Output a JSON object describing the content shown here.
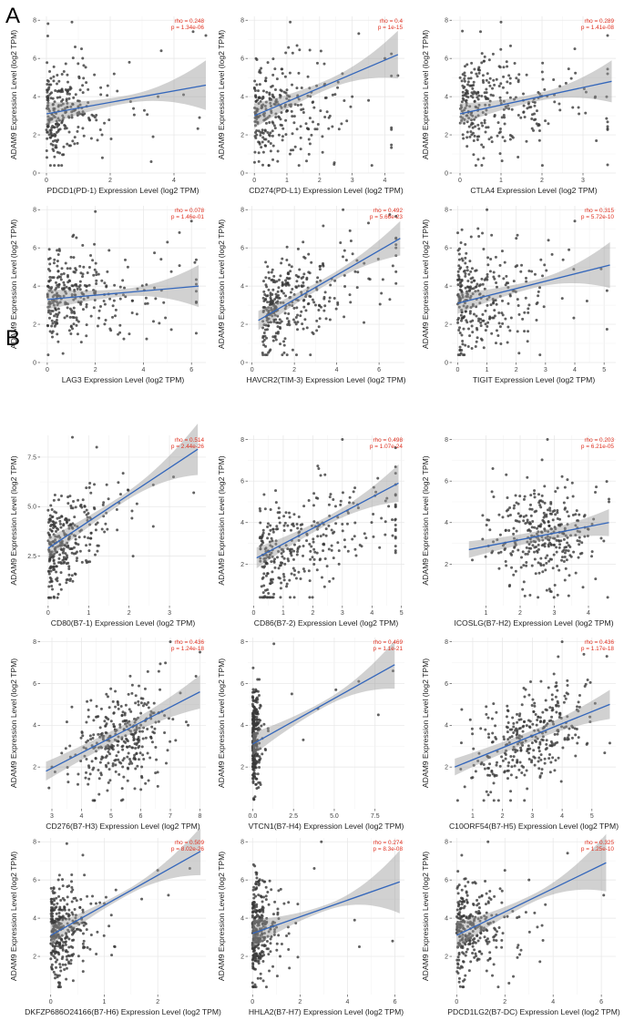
{
  "panels": [
    {
      "label": "A"
    },
    {
      "label": "B"
    }
  ],
  "chart_data": [
    {
      "type": "scatter",
      "xlabel": "PDCD1(PD-1) Expression Level (log2 TPM)",
      "ylabel": "ADAM9 Expression Level (log2 TPM)",
      "rho": "rho = 0.248",
      "pval": "p = 1.34e-06",
      "xlim": [
        -0.2,
        5.0
      ],
      "ylim": [
        0,
        8.2
      ],
      "xticks": [
        0,
        2,
        4
      ],
      "yticks": [
        0,
        2,
        4,
        6,
        8
      ],
      "fit": {
        "x": [
          0,
          5
        ],
        "y": [
          3.1,
          4.6
        ]
      },
      "ci": [
        0.2,
        0.4,
        1.1
      ],
      "cloud": {
        "x0": 0.0,
        "xdecay": 0.7,
        "xmax": 4.9,
        "ymean": 3.2,
        "ysd": 1.3,
        "n": 260,
        "seed": 11
      },
      "points": [
        [
          4.6,
          7.4
        ],
        [
          5.0,
          7.2
        ],
        [
          0.8,
          7.9
        ],
        [
          0.9,
          6.6
        ],
        [
          1.1,
          6.5
        ],
        [
          3.6,
          6.4
        ],
        [
          2.6,
          5.8
        ],
        [
          4.3,
          4.1
        ],
        [
          4.8,
          2.9
        ],
        [
          3.5,
          4.0
        ]
      ]
    },
    {
      "type": "scatter",
      "xlabel": "CD274(PD-L1) Expression Level (log2 TPM)",
      "ylabel": "ADAM9 Expression Level (log2 TPM)",
      "rho": "rho = 0.4",
      "pval": "p = 1e-15",
      "xlim": [
        -0.2,
        4.6
      ],
      "ylim": [
        0,
        8.2
      ],
      "xticks": [
        0,
        1,
        2,
        3,
        4
      ],
      "yticks": [
        0,
        2,
        4,
        6,
        8
      ],
      "fit": {
        "x": [
          0,
          4.4
        ],
        "y": [
          3.0,
          6.2
        ]
      },
      "ci": [
        0.25,
        0.4,
        1.0
      ],
      "cloud": {
        "x0": 0.0,
        "xdecay": 0.9,
        "xmax": 4.2,
        "ymean": 3.3,
        "ysd": 1.3,
        "n": 280,
        "seed": 23
      },
      "points": [
        [
          1.1,
          7.9
        ],
        [
          3.2,
          7.3
        ],
        [
          4.0,
          6.0
        ],
        [
          4.4,
          5.1
        ],
        [
          2.7,
          5.2
        ],
        [
          3.0,
          4.0
        ],
        [
          2.6,
          2.3
        ],
        [
          3.5,
          3.8
        ]
      ]
    },
    {
      "type": "scatter",
      "xlabel": "CTLA4 Expression Level (log2 TPM)",
      "ylabel": "ADAM9 Expression Level (log2 TPM)",
      "rho": "rho = 0.289",
      "pval": "p = 1.41e-08",
      "xlim": [
        -0.2,
        3.8
      ],
      "ylim": [
        0,
        8.2
      ],
      "xticks": [
        0,
        1,
        2,
        3
      ],
      "yticks": [
        0,
        2,
        4,
        6,
        8
      ],
      "fit": {
        "x": [
          0,
          3.7
        ],
        "y": [
          3.1,
          4.8
        ]
      },
      "ci": [
        0.2,
        0.35,
        0.9
      ],
      "cloud": {
        "x0": 0.0,
        "xdecay": 1.0,
        "xmax": 3.6,
        "ymean": 3.5,
        "ysd": 1.3,
        "n": 300,
        "seed": 37
      },
      "points": [
        [
          1.0,
          7.9
        ],
        [
          3.6,
          7.2
        ],
        [
          0.5,
          7.4
        ],
        [
          2.8,
          6.5
        ],
        [
          3.3,
          4.0
        ]
      ]
    },
    {
      "type": "scatter",
      "xlabel": "LAG3 Expression Level (log2 TPM)",
      "ylabel": "ADAM9 Expression Level (log2 TPM)",
      "rho": "rho = 0.078",
      "pval": "p = 1.46e-01",
      "xlim": [
        -0.3,
        6.6
      ],
      "ylim": [
        0,
        8.2
      ],
      "xticks": [
        0,
        2,
        4,
        6
      ],
      "yticks": [
        0,
        2,
        4,
        6,
        8
      ],
      "fit": {
        "x": [
          0,
          6.3
        ],
        "y": [
          3.3,
          4.0
        ]
      },
      "ci": [
        0.2,
        0.35,
        0.9
      ],
      "cloud": {
        "x0": 0.0,
        "xdecay": 1.5,
        "xmax": 6.2,
        "ymean": 3.4,
        "ysd": 1.25,
        "n": 300,
        "seed": 41
      },
      "points": [
        [
          2.0,
          7.9
        ],
        [
          6.0,
          7.4
        ],
        [
          5.0,
          6.3
        ],
        [
          5.5,
          6.8
        ],
        [
          6.2,
          4.1
        ]
      ]
    },
    {
      "type": "scatter",
      "xlabel": "HAVCR2(TIM-3) Expression Level (log2 TPM)",
      "ylabel": "ADAM9 Expression Level (log2 TPM)",
      "rho": "rho = 0.492",
      "pval": "p = 5.66e-23",
      "xlim": [
        -0.2,
        7.2
      ],
      "ylim": [
        0,
        8.2
      ],
      "xticks": [
        0,
        2,
        4,
        6
      ],
      "yticks": [
        0,
        2,
        4,
        6,
        8
      ],
      "fit": {
        "x": [
          0.3,
          7.0
        ],
        "y": [
          2.2,
          6.5
        ]
      },
      "ci": [
        0.2,
        0.3,
        0.7
      ],
      "cloud": {
        "x0": 0.5,
        "xdecay": 1.6,
        "xmax": 6.8,
        "ymean": 3.3,
        "ysd": 1.2,
        "slope": 0.45,
        "n": 330,
        "seed": 53
      },
      "points": [
        [
          4.3,
          8.0
        ],
        [
          5.5,
          7.3
        ],
        [
          6.8,
          6.0
        ],
        [
          0.5,
          0.5
        ],
        [
          1.5,
          1.1
        ]
      ]
    },
    {
      "type": "scatter",
      "xlabel": "TIGIT Expression Level (log2 TPM)",
      "ylabel": "ADAM9 Expression Level (log2 TPM)",
      "rho": "rho = 0.315",
      "pval": "p = 5.72e-10",
      "xlim": [
        -0.2,
        5.4
      ],
      "ylim": [
        0,
        8.2
      ],
      "xticks": [
        0,
        1,
        2,
        3,
        4,
        5
      ],
      "yticks": [
        0,
        2,
        4,
        6,
        8
      ],
      "fit": {
        "x": [
          0,
          5.2
        ],
        "y": [
          3.1,
          5.1
        ]
      },
      "ci": [
        0.2,
        0.35,
        1.0
      ],
      "cloud": {
        "x0": 0.0,
        "xdecay": 0.9,
        "xmax": 5.1,
        "ymean": 3.3,
        "ysd": 1.3,
        "n": 300,
        "seed": 67
      },
      "points": [
        [
          1.0,
          8.0
        ],
        [
          4.0,
          7.4
        ],
        [
          3.1,
          6.4
        ],
        [
          3.8,
          5.9
        ],
        [
          4.9,
          4.9
        ],
        [
          2.0,
          6.5
        ]
      ]
    },
    {
      "type": "scatter",
      "xlabel": "CD80(B7-1) Expression Level (log2 TPM)",
      "ylabel": "ADAM9 Expression Level (log2 TPM)",
      "rho": "rho = 0.514",
      "pval": "p = 2.44e-26",
      "xlim": [
        -0.2,
        3.9
      ],
      "ylim": [
        0,
        8.6
      ],
      "xticks": [
        0,
        1,
        2,
        3
      ],
      "ytickvals": [
        2.5,
        5.0,
        7.5
      ],
      "yticklabels": [
        "2.5",
        "5.0",
        "7.5"
      ],
      "fit": {
        "x": [
          0,
          3.7
        ],
        "y": [
          2.9,
          7.9
        ]
      },
      "ci": [
        0.2,
        0.35,
        1.1
      ],
      "cloud": {
        "x0": 0.0,
        "xdecay": 0.5,
        "xmax": 3.4,
        "ymean": 3.4,
        "ysd": 1.15,
        "slope": 1.2,
        "n": 300,
        "seed": 71
      },
      "points": [
        [
          0.6,
          8.5
        ],
        [
          1.2,
          8.0
        ],
        [
          2.6,
          6.1
        ],
        [
          3.6,
          5.7
        ],
        [
          3.1,
          6.5
        ],
        [
          2.1,
          2.5
        ],
        [
          2.6,
          4.0
        ]
      ]
    },
    {
      "type": "scatter",
      "xlabel": "CD86(B7-2) Expression Level (log2 TPM)",
      "ylabel": "ADAM9 Expression Level (log2 TPM)",
      "rho": "rho = 0.498",
      "pval": "p = 1.07e-24",
      "xlim": [
        -0.2,
        5.1
      ],
      "ylim": [
        0,
        8.2
      ],
      "xticks": [
        0,
        1,
        2,
        3,
        4,
        5
      ],
      "yticks": [
        2,
        4,
        6,
        8
      ],
      "fit": {
        "x": [
          0.1,
          4.9
        ],
        "y": [
          2.3,
          5.9
        ]
      },
      "ci": [
        0.2,
        0.3,
        0.7
      ],
      "cloud": {
        "x0": 0.2,
        "xdecay": 1.6,
        "xmax": 4.8,
        "ymean": 3.1,
        "ysd": 1.2,
        "slope": 0.5,
        "n": 330,
        "seed": 83
      },
      "points": [
        [
          3.0,
          8.0
        ],
        [
          4.8,
          7.6
        ],
        [
          2.2,
          6.6
        ],
        [
          0.3,
          1.3
        ],
        [
          1.9,
          1.2
        ]
      ]
    },
    {
      "type": "scatter",
      "xlabel": "ICOSLG(B7-H2) Expression Level (log2 TPM)",
      "ylabel": "ADAM9 Expression Level (log2 TPM)",
      "rho": "rho = 0.203",
      "pval": "p = 6.21e-05",
      "xlim": [
        0,
        4.8
      ],
      "ylim": [
        0,
        8.2
      ],
      "xticks": [
        1,
        2,
        3,
        4
      ],
      "yticks": [
        2,
        4,
        6,
        8
      ],
      "fit": {
        "x": [
          0.5,
          4.6
        ],
        "y": [
          2.7,
          4.0
        ]
      },
      "ci": [
        0.25,
        0.15,
        0.4
      ],
      "cloud": {
        "x0": 2.6,
        "xnormal": 0.8,
        "xmax": 4.6,
        "ymean": 3.4,
        "ysd": 1.3,
        "n": 340,
        "seed": 97
      },
      "points": [
        [
          2.8,
          8.0
        ],
        [
          1.2,
          6.6
        ],
        [
          4.6,
          5.0
        ],
        [
          0.6,
          2.2
        ]
      ]
    },
    {
      "type": "scatter",
      "xlabel": "CD276(B7-H3) Expression Level (log2 TPM)",
      "ylabel": "ADAM9 Expression Level (log2 TPM)",
      "rho": "rho = 0.436",
      "pval": "p = 1.24e-18",
      "xlim": [
        2.6,
        8.2
      ],
      "ylim": [
        0,
        8.2
      ],
      "xticks": [
        3,
        4,
        5,
        6,
        7,
        8
      ],
      "yticks": [
        2,
        4,
        6,
        8
      ],
      "fit": {
        "x": [
          2.8,
          8.0
        ],
        "y": [
          1.8,
          5.6
        ]
      },
      "ci": [
        0.3,
        0.15,
        0.5
      ],
      "cloud": {
        "x0": 5.3,
        "xnormal": 0.8,
        "xmax": 8,
        "ymean": 3.4,
        "ysd": 1.2,
        "slope": 0.55,
        "n": 340,
        "seed": 101
      },
      "points": [
        [
          7.0,
          8.0
        ],
        [
          8.0,
          7.5
        ],
        [
          3.0,
          2.0
        ],
        [
          2.9,
          1.0
        ],
        [
          7.6,
          4.0
        ]
      ]
    },
    {
      "type": "scatter",
      "xlabel": "VTCN1(B7-H4) Expression Level (log2 TPM)",
      "ylabel": "ADAM9 Expression Level (log2 TPM)",
      "rho": "rho = 0.469",
      "pval": "p = 1.1e-21",
      "xlim": [
        -0.3,
        9.3
      ],
      "ylim": [
        0,
        8.2
      ],
      "xticks": [
        0,
        2.5,
        5,
        7.5
      ],
      "xticklabels": [
        "0.0",
        "2.5",
        "5.0",
        "7.5"
      ],
      "yticks": [
        2,
        4,
        6,
        8
      ],
      "fit": {
        "x": [
          0,
          8.7
        ],
        "y": [
          3.1,
          6.9
        ]
      },
      "ci": [
        0.15,
        0.4,
        1.0
      ],
      "cloud": {
        "x0": 0.0,
        "xdecay": 0.15,
        "xmax": 8.7,
        "ymean": 3.3,
        "ysd": 1.2,
        "n": 300,
        "seed": 113
      },
      "points": [
        [
          1.3,
          7.9
        ],
        [
          5.1,
          5.7
        ],
        [
          6.5,
          6.1
        ],
        [
          8.6,
          6.6
        ],
        [
          4.0,
          4.8
        ],
        [
          2.4,
          5.5
        ],
        [
          3.1,
          3.3
        ],
        [
          7.7,
          4.5
        ]
      ]
    },
    {
      "type": "scatter",
      "xlabel": "C10ORF54(B7-H5) Expression Level (log2 TPM)",
      "ylabel": "ADAM9 Expression Level (log2 TPM)",
      "rho": "rho = 0.436",
      "pval": "p = 1.17e-18",
      "xlim": [
        0.3,
        5.8
      ],
      "ylim": [
        0,
        8.2
      ],
      "xticks": [
        1,
        2,
        3,
        4,
        5
      ],
      "yticks": [
        2,
        4,
        6,
        8
      ],
      "fit": {
        "x": [
          0.4,
          5.6
        ],
        "y": [
          2.0,
          5.0
        ]
      },
      "ci": [
        0.25,
        0.15,
        0.45
      ],
      "cloud": {
        "x0": 3.0,
        "xnormal": 1.0,
        "xmax": 5.6,
        "ymean": 3.4,
        "ysd": 1.2,
        "slope": 0.55,
        "n": 340,
        "seed": 127
      },
      "points": [
        [
          4.0,
          8.0
        ],
        [
          5.5,
          7.3
        ],
        [
          1.0,
          1.5
        ],
        [
          0.6,
          1.9
        ]
      ]
    },
    {
      "type": "scatter",
      "xlabel": "DKFZP686O24166(B7-H6) Expression Level (log2 TPM)",
      "ylabel": "ADAM9 Expression Level (log2 TPM)",
      "rho": "rho = 0.509",
      "pval": "p = 8.02e-26",
      "xlim": [
        -0.2,
        2.9
      ],
      "ylim": [
        0,
        8.2
      ],
      "xticks": [
        0,
        1,
        2
      ],
      "yticks": [
        2,
        4,
        6,
        8
      ],
      "fit": {
        "x": [
          0,
          2.8
        ],
        "y": [
          3.1,
          7.5
        ]
      },
      "ci": [
        0.15,
        0.4,
        1.1
      ],
      "cloud": {
        "x0": 0.0,
        "xdecay": 0.25,
        "xmax": 2.6,
        "ymean": 3.4,
        "ysd": 1.15,
        "slope": 1.0,
        "n": 330,
        "seed": 131
      },
      "points": [
        [
          0.3,
          7.9
        ],
        [
          0.6,
          7.3
        ],
        [
          2.0,
          6.5
        ],
        [
          2.6,
          6.6
        ],
        [
          1.7,
          5.0
        ],
        [
          2.2,
          5.2
        ],
        [
          1.2,
          2.5
        ]
      ]
    },
    {
      "type": "scatter",
      "xlabel": "HHLA2(B7-H7) Expression Level (log2 TPM)",
      "ylabel": "ADAM9 Expression Level (log2 TPM)",
      "rho": "rho = 0.274",
      "pval": "p = 8.3e-08",
      "xlim": [
        -0.2,
        6.4
      ],
      "ylim": [
        0,
        8.2
      ],
      "xticks": [
        0,
        2,
        4,
        6
      ],
      "yticks": [
        2,
        4,
        6,
        8
      ],
      "fit": {
        "x": [
          0,
          6.2
        ],
        "y": [
          3.2,
          5.9
        ]
      },
      "ci": [
        0.15,
        0.6,
        1.5
      ],
      "cloud": {
        "x0": 0.0,
        "xdecay": 0.35,
        "xmax": 6.2,
        "ymean": 3.4,
        "ysd": 1.3,
        "n": 320,
        "seed": 139
      },
      "points": [
        [
          2.9,
          8.0
        ],
        [
          2.6,
          6.6
        ],
        [
          4.3,
          3.9
        ],
        [
          5.9,
          2.8
        ],
        [
          4.5,
          2.5
        ]
      ]
    },
    {
      "type": "scatter",
      "xlabel": "PDCD1LG2(B7-DC) Expression Level (log2 TPM)",
      "ylabel": "ADAM9 Expression Level (log2 TPM)",
      "rho": "rho = 0.325",
      "pval": "p = 1.25e-10",
      "xlim": [
        -0.2,
        6.6
      ],
      "ylim": [
        0,
        8.2
      ],
      "xticks": [
        0,
        2,
        4,
        6
      ],
      "yticks": [
        2,
        4,
        6,
        8
      ],
      "fit": {
        "x": [
          0,
          6.2
        ],
        "y": [
          3.1,
          6.9
        ]
      },
      "ci": [
        0.2,
        0.5,
        1.3
      ],
      "cloud": {
        "x0": 0.0,
        "xdecay": 0.8,
        "xmax": 6.0,
        "ymean": 3.4,
        "ysd": 1.3,
        "n": 300,
        "seed": 149
      },
      "points": [
        [
          1.3,
          8.0
        ],
        [
          4.6,
          7.4
        ],
        [
          3.0,
          6.0
        ],
        [
          6.1,
          5.2
        ],
        [
          2.0,
          6.5
        ]
      ]
    }
  ]
}
